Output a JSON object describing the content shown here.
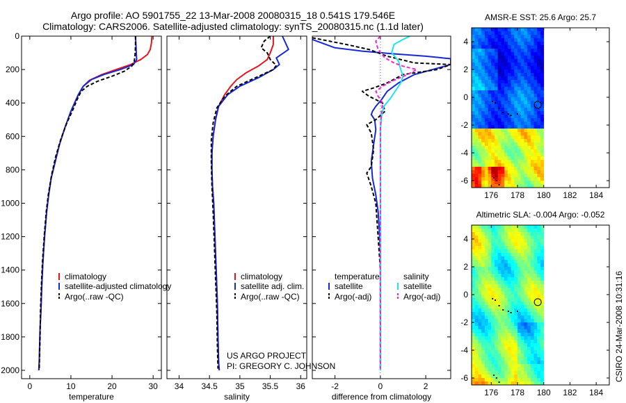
{
  "header": {
    "title_line1": "Argo profile: AO 5901755_22 13-Mar-2008 20080315_18 0.541S 179.546E",
    "title_line2": "Climatology: CARS2006. Satellite-adjusted climatology: synTS_20080315.nc (1.1d later)"
  },
  "footer": {
    "project": "US ARGO PROJECT",
    "pi": "PI: GREGORY C. JOHNSON",
    "stamp": "CSIRO 24-Mar-2008 10:31:16"
  },
  "colors": {
    "climatology": "#e8141c",
    "satellite": "#1428d8",
    "argo": "#000000",
    "cyan": "#18e6f0",
    "magenta": "#f028d8",
    "vline": "#5a6ee0"
  },
  "chart_data": [
    {
      "type": "line",
      "id": "temperature",
      "xlabel": "temperature",
      "ylabel": "",
      "xlim": [
        -2,
        32
      ],
      "ylim": [
        2050,
        0
      ],
      "xticks": [
        0,
        10,
        20,
        30
      ],
      "yticks": [
        0,
        200,
        400,
        600,
        800,
        1000,
        1200,
        1400,
        1600,
        1800,
        2000
      ],
      "legend": [
        "climatology",
        "satellite-adjusted climatology",
        "Argo(..raw -QC)"
      ],
      "series": [
        {
          "name": "climatology",
          "color": "#e8141c",
          "dash": "",
          "x": [
            29.7,
            29.6,
            29.3,
            28.6,
            27.0,
            24.5,
            21.0,
            17.5,
            14.5,
            13.0,
            11.8,
            10.0,
            8.5,
            7.2,
            6.2,
            5.2,
            4.6,
            4.1,
            3.6,
            3.2,
            2.9,
            2.7,
            2.5,
            2.4,
            2.3,
            2.2
          ],
          "y": [
            0,
            40,
            80,
            110,
            140,
            170,
            200,
            230,
            265,
            300,
            350,
            450,
            550,
            650,
            750,
            850,
            950,
            1050,
            1200,
            1350,
            1500,
            1650,
            1750,
            1850,
            1950,
            2000
          ]
        },
        {
          "name": "satellite",
          "color": "#1428d8",
          "dash": "",
          "x": [
            25.7,
            25.8,
            25.9,
            26.0,
            25.2,
            22.0,
            18.0,
            15.0,
            13.0,
            11.8,
            10.0,
            8.5,
            7.2,
            6.2,
            5.2,
            4.6,
            4.1,
            3.6,
            3.2,
            2.9,
            2.7,
            2.5,
            2.4,
            2.3,
            2.2
          ],
          "y": [
            0,
            40,
            100,
            140,
            170,
            200,
            230,
            260,
            300,
            350,
            450,
            550,
            650,
            750,
            850,
            950,
            1050,
            1200,
            1350,
            1500,
            1650,
            1750,
            1850,
            1950,
            2000
          ]
        },
        {
          "name": "Argo(..raw -QC)",
          "color": "#000000",
          "dash": "5,3",
          "x": [
            25.7,
            25.7,
            25.6,
            25.4,
            24.8,
            23.0,
            20.0,
            16.5,
            14.0,
            12.5,
            11.5,
            10.5,
            9.0,
            7.5,
            6.3,
            5.3,
            4.5,
            4.0,
            3.5,
            3.1,
            2.8,
            2.6,
            2.5,
            2.4,
            2.3
          ],
          "y": [
            0,
            60,
            110,
            150,
            180,
            210,
            240,
            270,
            300,
            330,
            380,
            440,
            520,
            620,
            720,
            830,
            950,
            1050,
            1200,
            1350,
            1500,
            1650,
            1800,
            1900,
            1990
          ]
        }
      ]
    },
    {
      "type": "line",
      "id": "salinity",
      "xlabel": "salinity",
      "ylabel": "",
      "xlim": [
        33.8,
        36.1
      ],
      "ylim": [
        2050,
        0
      ],
      "xticks": [
        34,
        34.5,
        35,
        35.5,
        36
      ],
      "yticks": [
        0,
        200,
        400,
        600,
        800,
        1000,
        1200,
        1400,
        1600,
        1800,
        2000
      ],
      "legend": [
        "climatology",
        "satellite adj. clim.",
        "Argo(..raw -QC)"
      ],
      "series": [
        {
          "name": "climatology",
          "color": "#e8141c",
          "dash": "",
          "x": [
            35.55,
            35.55,
            35.5,
            35.45,
            35.3,
            35.1,
            34.95,
            34.85,
            34.75,
            34.65,
            34.6,
            34.56,
            34.54,
            34.54,
            34.55,
            34.57,
            34.59,
            34.61,
            34.63,
            34.64,
            34.65,
            34.66
          ],
          "y": [
            0,
            50,
            100,
            140,
            180,
            220,
            260,
            300,
            350,
            420,
            500,
            600,
            700,
            800,
            900,
            1000,
            1200,
            1400,
            1600,
            1800,
            1950,
            2000
          ]
        },
        {
          "name": "satellite adj. clim.",
          "color": "#1428d8",
          "dash": "",
          "x": [
            35.7,
            35.75,
            35.8,
            35.6,
            35.65,
            35.55,
            35.3,
            35.0,
            34.8,
            34.65,
            34.6,
            34.56,
            34.54,
            34.54,
            34.55,
            34.57,
            34.59,
            34.61,
            34.63,
            34.64,
            34.65,
            34.66
          ],
          "y": [
            0,
            40,
            80,
            130,
            170,
            200,
            250,
            300,
            350,
            420,
            500,
            600,
            700,
            800,
            900,
            1000,
            1200,
            1400,
            1600,
            1800,
            1950,
            2000
          ]
        },
        {
          "name": "Argo(..raw -QC)",
          "color": "#000000",
          "dash": "5,3",
          "x": [
            35.5,
            35.4,
            35.35,
            35.45,
            35.5,
            35.6,
            35.55,
            35.25,
            34.95,
            34.75,
            34.62,
            34.56,
            34.53,
            34.53,
            34.54,
            34.56,
            34.58,
            34.6,
            34.62,
            34.63,
            34.64
          ],
          "y": [
            0,
            30,
            70,
            100,
            140,
            175,
            200,
            250,
            300,
            360,
            430,
            520,
            620,
            750,
            900,
            1050,
            1250,
            1450,
            1650,
            1850,
            1990
          ]
        }
      ]
    },
    {
      "type": "line",
      "id": "difference",
      "xlabel": "difference from climatology",
      "ylabel": "",
      "xlim": [
        -3,
        3.1
      ],
      "ylim": [
        2050,
        0
      ],
      "xticks": [
        -2,
        0,
        2
      ],
      "yticks": [
        0,
        200,
        400,
        600,
        800,
        1000,
        1200,
        1400,
        1600,
        1800,
        2000
      ],
      "legend_headers": [
        "temperature",
        "salinity"
      ],
      "legend": [
        "satellite",
        "Argo(-adj)",
        "satellite",
        "Argo(-adj)"
      ],
      "series": [
        {
          "name": "temperature satellite",
          "color": "#1428d8",
          "dash": "",
          "x": [
            -3.0,
            -2.0,
            -0.8,
            0.5,
            2.0,
            3.1,
            3.1,
            1.5,
            0.8,
            0.3,
            0.05,
            -0.2,
            -0.35,
            -0.4,
            -0.25,
            -0.2,
            -0.3,
            -0.4,
            -0.35,
            -0.2,
            -0.1,
            -0.05,
            0.0,
            0.0,
            0.0,
            0.0,
            0.0
          ],
          "y": [
            20,
            70,
            90,
            105,
            120,
            135,
            170,
            230,
            280,
            330,
            380,
            420,
            450,
            470,
            500,
            560,
            650,
            750,
            850,
            950,
            1050,
            1150,
            1300,
            1500,
            1700,
            1900,
            2000
          ]
        },
        {
          "name": "temperature Argo(-adj)",
          "color": "#000000",
          "dash": "5,3",
          "x": [
            -3.0,
            -1.5,
            -0.5,
            0.3,
            1.5,
            3.1,
            2.5,
            1.0,
            0.3,
            -0.3,
            -0.8,
            -0.5,
            0.1,
            0.2,
            -0.2,
            -0.6,
            -0.4,
            -0.3,
            -0.4,
            -0.6,
            -0.4,
            -0.2,
            -0.1,
            0.0,
            0.0,
            0.0
          ],
          "y": [
            10,
            50,
            80,
            120,
            160,
            170,
            200,
            230,
            280,
            310,
            330,
            360,
            400,
            450,
            500,
            530,
            580,
            680,
            780,
            820,
            900,
            1000,
            1200,
            1400,
            1700,
            1990
          ]
        },
        {
          "name": "salinity satellite",
          "color": "#18e6f0",
          "dash": "",
          "x": [
            1.3,
            1.0,
            0.6,
            0.5,
            0.8,
            0.9,
            1.0,
            0.9,
            0.7,
            0.4,
            0.15,
            0.05,
            0.0,
            0.0,
            0.0,
            0.0,
            0.0,
            0.0,
            0.0,
            0.0
          ],
          "y": [
            0,
            20,
            50,
            100,
            150,
            200,
            240,
            280,
            320,
            380,
            420,
            480,
            560,
            700,
            900,
            1100,
            1400,
            1600,
            1800,
            2000
          ]
        },
        {
          "name": "salinity Argo(-adj)",
          "color": "#f028d8",
          "dash": "5,3",
          "x": [
            0.0,
            -0.2,
            -0.1,
            0.2,
            0.6,
            1.0,
            1.6,
            1.2,
            0.5,
            0.1,
            -0.2,
            -0.1,
            0.1,
            0.05,
            0.0,
            0.0,
            0.0,
            0.0
          ],
          "y": [
            0,
            30,
            80,
            130,
            160,
            180,
            200,
            230,
            270,
            300,
            330,
            360,
            400,
            450,
            550,
            800,
            1200,
            1990
          ]
        }
      ]
    },
    {
      "type": "heatmap",
      "id": "sst-map",
      "title_prefix": "AMSR-E SST:",
      "title_value": "25.6",
      "title_suffix": "Argo:",
      "title_argo": "25.7",
      "xlim": [
        174.5,
        185
      ],
      "ylim": [
        -6.5,
        5
      ],
      "xticks": [
        176,
        178,
        180,
        182,
        184
      ],
      "yticks": [
        -6,
        -4,
        -2,
        0,
        2,
        4
      ],
      "data_lon_max": 180,
      "marker": {
        "lon": 179.546,
        "lat": -0.541
      },
      "palette": "jet",
      "vmin": 24.0,
      "vmax": 30.0,
      "coast": [
        [
          176.1,
          -0.3
        ],
        [
          176.3,
          -0.4
        ],
        [
          176.6,
          -0.8
        ],
        [
          176.9,
          -1.1
        ],
        [
          177.3,
          -1.2
        ],
        [
          177.5,
          -1.3
        ],
        [
          178.0,
          -1.2
        ],
        [
          176.2,
          -5.8
        ],
        [
          176.4,
          -6.0
        ],
        [
          176.6,
          -6.3
        ]
      ]
    },
    {
      "type": "heatmap",
      "id": "sla-map",
      "title_prefix": "Altimetric SLA:",
      "title_value": "-0.004",
      "title_suffix": "Argo:",
      "title_argo": "-0.052",
      "xlim": [
        174.5,
        185
      ],
      "ylim": [
        -6.5,
        5
      ],
      "xticks": [
        176,
        178,
        180,
        182,
        184
      ],
      "yticks": [
        -6,
        -4,
        -2,
        0,
        2,
        4
      ],
      "data_lon_max": 180,
      "marker": {
        "lon": 179.546,
        "lat": -0.541
      },
      "palette": "jet",
      "vmin": -0.3,
      "vmax": 0.3,
      "coast": [
        [
          176.1,
          -0.3
        ],
        [
          176.3,
          -0.4
        ],
        [
          176.6,
          -0.8
        ],
        [
          176.9,
          -1.1
        ],
        [
          177.3,
          -1.2
        ],
        [
          177.5,
          -1.3
        ],
        [
          178.0,
          -1.2
        ],
        [
          176.2,
          -5.8
        ],
        [
          176.4,
          -6.0
        ],
        [
          176.6,
          -6.3
        ]
      ]
    }
  ]
}
